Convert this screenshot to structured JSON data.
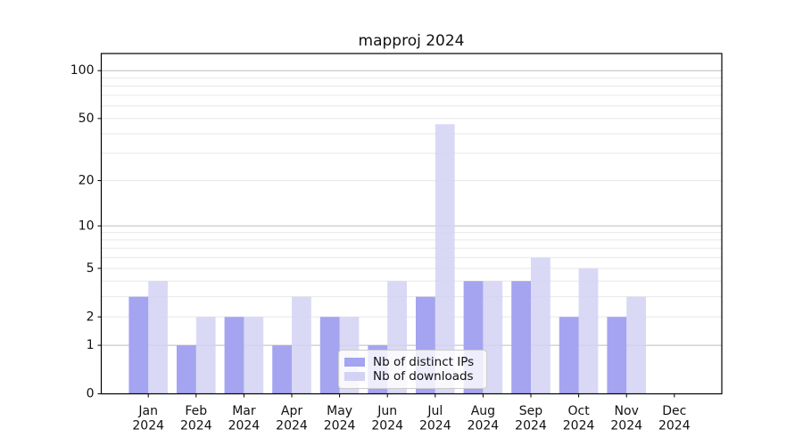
{
  "title": "mapproj 2024",
  "colors": {
    "ips_bar": "#a4a4f0",
    "downloads_bar": "#d2d2f5",
    "grid_minor": "#e7e7e7",
    "grid_major": "#bdbdbd",
    "axis": "#000000",
    "text": "#111111",
    "legend_border": "#cccccc"
  },
  "legend": {
    "entries": [
      {
        "label": "Nb of distinct IPs",
        "color": "#a4a4f0"
      },
      {
        "label": "Nb of downloads",
        "color": "#d2d2f5"
      }
    ]
  },
  "chart_data": {
    "type": "bar",
    "title": "mapproj 2024",
    "categories": [
      "Jan",
      "Feb",
      "Mar",
      "Apr",
      "May",
      "Jun",
      "Jul",
      "Aug",
      "Sep",
      "Oct",
      "Nov",
      "Dec"
    ],
    "year": "2024",
    "series": [
      {
        "name": "Nb of distinct IPs",
        "color": "#a4a4f0",
        "values": [
          3,
          1,
          2,
          1,
          2,
          1,
          3,
          4,
          4,
          2,
          2,
          0
        ]
      },
      {
        "name": "Nb of downloads",
        "color": "#d2d2f5",
        "values": [
          4,
          2,
          2,
          3,
          2,
          4,
          46,
          4,
          6,
          5,
          3,
          0
        ]
      }
    ],
    "xlabel": "",
    "ylabel": "",
    "yscale": "log1p",
    "ylim": [
      0,
      128
    ],
    "yticks": [
      0,
      1,
      2,
      5,
      10,
      20,
      50,
      100
    ],
    "minor_gridlines": [
      2,
      3,
      4,
      5,
      6,
      7,
      8,
      9,
      20,
      30,
      40,
      50,
      60,
      70,
      80,
      90
    ],
    "major_gridlines": [
      1,
      10,
      100
    ],
    "grid": "on",
    "legend_position": "lower center"
  }
}
